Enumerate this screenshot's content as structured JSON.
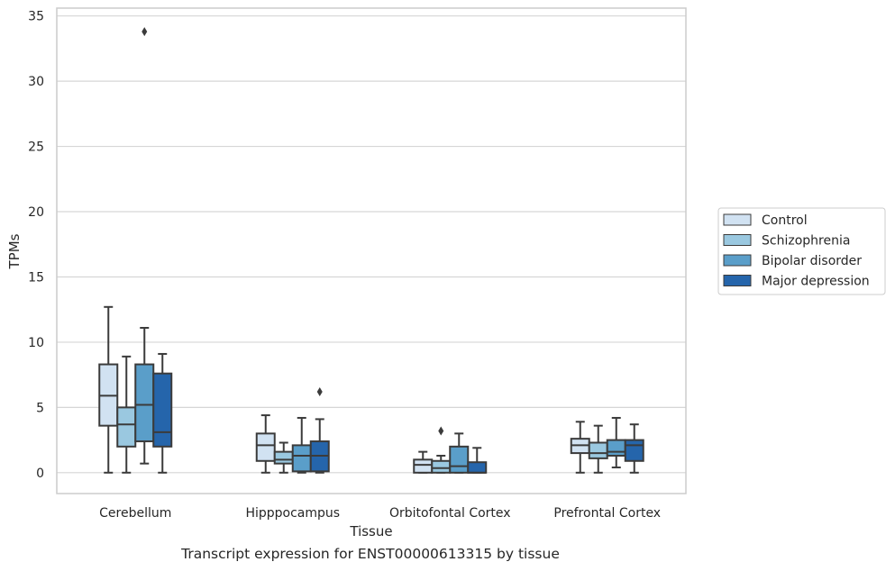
{
  "caption": "Transcript expression for ENST00000613315 by tissue",
  "chart_data": {
    "type": "box",
    "xlabel": "Tissue",
    "ylabel": "TPMs",
    "ylim": [
      -1.6,
      35.6
    ],
    "yticks": [
      0,
      5,
      10,
      15,
      20,
      25,
      30,
      35
    ],
    "grid": "horizontal",
    "legend_position": "right",
    "categories": [
      "Cerebellum",
      "Hipppocampus",
      "Orbitofontal Cortex",
      "Prefrontal Cortex"
    ],
    "series": [
      {
        "name": "Control",
        "color": "#d1e2f2",
        "boxes": [
          {
            "whislo": 0,
            "q1": 3.6,
            "med": 5.9,
            "q3": 8.3,
            "whishi": 12.7,
            "fliers": []
          },
          {
            "whislo": 0,
            "q1": 0.9,
            "med": 2.1,
            "q3": 3.0,
            "whishi": 4.4,
            "fliers": []
          },
          {
            "whislo": 0,
            "q1": 0.0,
            "med": 0.6,
            "q3": 1.0,
            "whishi": 1.6,
            "fliers": []
          },
          {
            "whislo": 0,
            "q1": 1.5,
            "med": 2.1,
            "q3": 2.6,
            "whishi": 3.9,
            "fliers": []
          }
        ]
      },
      {
        "name": "Schizophrenia",
        "color": "#9ac8e0",
        "boxes": [
          {
            "whislo": 0,
            "q1": 2.0,
            "med": 3.7,
            "q3": 5.0,
            "whishi": 8.9,
            "fliers": []
          },
          {
            "whislo": 0,
            "q1": 0.7,
            "med": 1.0,
            "q3": 1.6,
            "whishi": 2.3,
            "fliers": []
          },
          {
            "whislo": 0,
            "q1": 0.0,
            "med": 0.35,
            "q3": 0.9,
            "whishi": 1.3,
            "fliers": [
              3.2
            ]
          },
          {
            "whislo": 0,
            "q1": 1.1,
            "med": 1.5,
            "q3": 2.3,
            "whishi": 3.6,
            "fliers": []
          }
        ]
      },
      {
        "name": "Bipolar disorder",
        "color": "#5a9ec9",
        "boxes": [
          {
            "whislo": 0.7,
            "q1": 2.4,
            "med": 5.2,
            "q3": 8.3,
            "whishi": 11.1,
            "fliers": [
              33.8
            ]
          },
          {
            "whislo": 0,
            "q1": 0.1,
            "med": 1.3,
            "q3": 2.1,
            "whishi": 4.2,
            "fliers": []
          },
          {
            "whislo": 0,
            "q1": 0.0,
            "med": 0.5,
            "q3": 2.0,
            "whishi": 3.0,
            "fliers": []
          },
          {
            "whislo": 0.4,
            "q1": 1.3,
            "med": 1.6,
            "q3": 2.5,
            "whishi": 4.2,
            "fliers": []
          }
        ]
      },
      {
        "name": "Major depression",
        "color": "#2565ab",
        "boxes": [
          {
            "whislo": 0,
            "q1": 2.0,
            "med": 3.1,
            "q3": 7.6,
            "whishi": 9.1,
            "fliers": []
          },
          {
            "whislo": 0,
            "q1": 0.1,
            "med": 1.3,
            "q3": 2.4,
            "whishi": 4.1,
            "fliers": [
              6.2
            ]
          },
          {
            "whislo": 0,
            "q1": 0.0,
            "med": 0.0,
            "q3": 0.8,
            "whishi": 1.9,
            "fliers": []
          },
          {
            "whislo": 0,
            "q1": 0.9,
            "med": 2.1,
            "q3": 2.5,
            "whishi": 3.7,
            "fliers": []
          }
        ]
      }
    ]
  }
}
